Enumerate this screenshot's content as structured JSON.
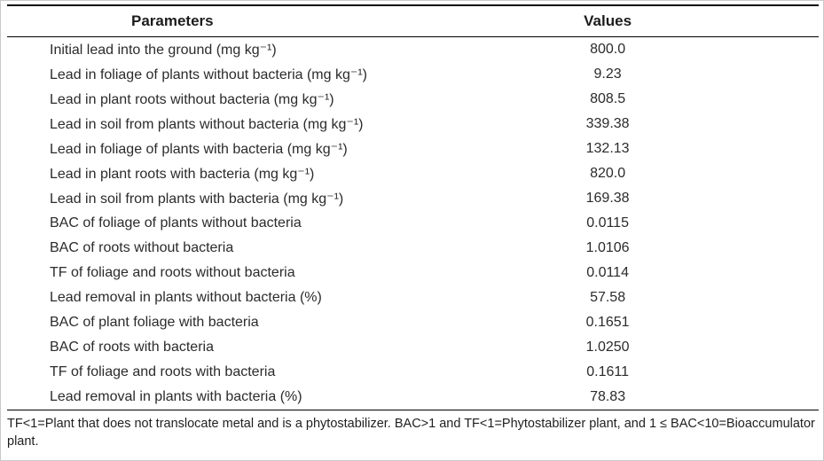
{
  "table": {
    "headers": {
      "parameters": "Parameters",
      "values": "Values"
    },
    "rows": [
      {
        "parameter": "Initial lead into the ground (mg kg⁻¹)",
        "value": "800.0"
      },
      {
        "parameter": "Lead in foliage of plants without bacteria (mg kg⁻¹)",
        "value": "9.23"
      },
      {
        "parameter": "Lead in plant roots without bacteria (mg kg⁻¹)",
        "value": "808.5"
      },
      {
        "parameter": "Lead in soil from plants without bacteria (mg kg⁻¹)",
        "value": "339.38"
      },
      {
        "parameter": "Lead in foliage of plants with bacteria (mg kg⁻¹)",
        "value": "132.13"
      },
      {
        "parameter": "Lead in plant roots with bacteria (mg kg⁻¹)",
        "value": "820.0"
      },
      {
        "parameter": "Lead in soil from plants with bacteria (mg kg⁻¹)",
        "value": "169.38"
      },
      {
        "parameter": "BAC of foliage of plants without bacteria",
        "value": "0.0115"
      },
      {
        "parameter": "BAC of roots without bacteria",
        "value": "1.0106"
      },
      {
        "parameter": "TF of foliage and roots without bacteria",
        "value": "0.0114"
      },
      {
        "parameter": "Lead removal in plants without bacteria (%)",
        "value": "57.58"
      },
      {
        "parameter": "BAC of plant foliage with bacteria",
        "value": "0.1651"
      },
      {
        "parameter": "BAC of roots with bacteria",
        "value": "1.0250"
      },
      {
        "parameter": "TF of foliage and roots with bacteria",
        "value": "0.1611"
      },
      {
        "parameter": "Lead removal in plants with bacteria (%)",
        "value": "78.83"
      }
    ]
  },
  "footnote": "TF<1=Plant that does not translocate metal and is a phytostabilizer. BAC>1 and TF<1=Phytostabilizer plant, and 1 ≤ BAC<10=Bioaccumulator plant."
}
